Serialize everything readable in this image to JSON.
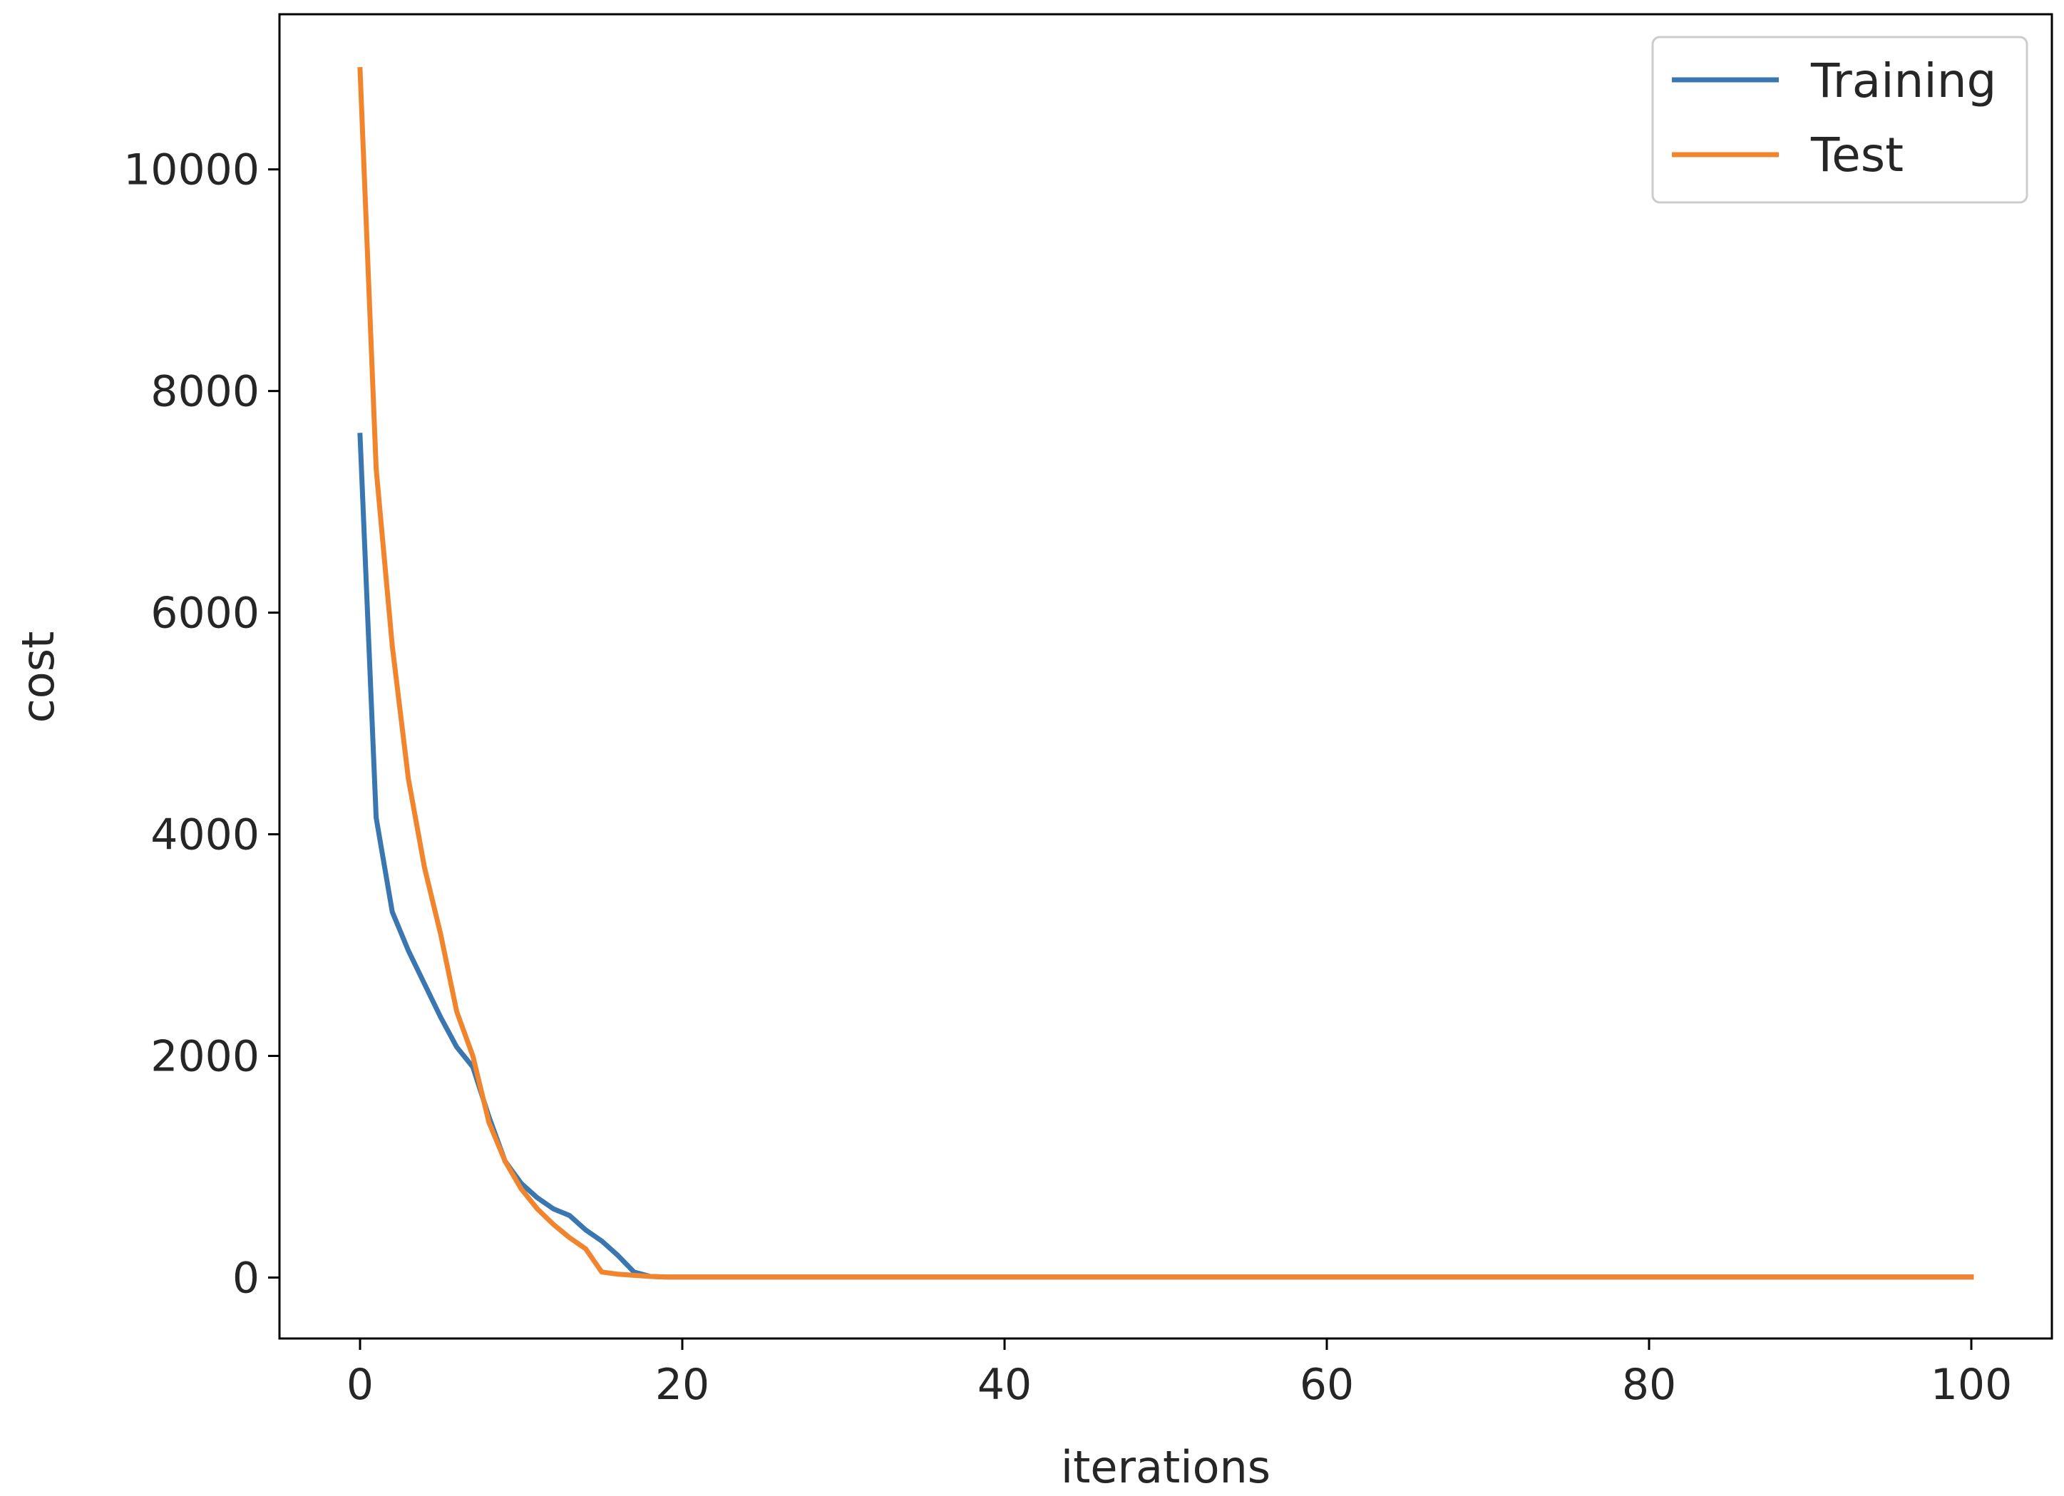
{
  "chart_data": {
    "type": "line",
    "title": "",
    "xlabel": "iterations",
    "ylabel": "cost",
    "xlim": [
      -5,
      105
    ],
    "ylim": [
      -550,
      11400
    ],
    "xticks": [
      0,
      20,
      40,
      60,
      80,
      100
    ],
    "yticks": [
      0,
      2000,
      4000,
      6000,
      8000,
      10000
    ],
    "grid": false,
    "legend_position": "top-right",
    "colors": {
      "Training": "#3a76b0",
      "Test": "#f0852d"
    },
    "series": [
      {
        "name": "Training",
        "x": [
          0,
          1,
          2,
          3,
          4,
          5,
          6,
          7,
          8,
          9,
          10,
          11,
          12,
          13,
          14,
          15,
          16,
          17,
          18,
          19,
          20,
          30,
          40,
          50,
          60,
          70,
          80,
          90,
          100
        ],
        "y": [
          7600,
          4150,
          3300,
          2950,
          2650,
          2350,
          2080,
          1900,
          1450,
          1050,
          850,
          720,
          620,
          560,
          430,
          330,
          200,
          50,
          10,
          5,
          5,
          5,
          5,
          5,
          5,
          5,
          5,
          5,
          5
        ]
      },
      {
        "name": "Test",
        "x": [
          0,
          1,
          2,
          3,
          4,
          5,
          6,
          7,
          8,
          9,
          10,
          11,
          12,
          13,
          14,
          15,
          16,
          17,
          18,
          19,
          20,
          30,
          40,
          50,
          60,
          70,
          80,
          90,
          100
        ],
        "y": [
          10900,
          7300,
          5700,
          4500,
          3700,
          3100,
          2400,
          2000,
          1400,
          1050,
          800,
          620,
          480,
          360,
          260,
          50,
          30,
          20,
          10,
          5,
          5,
          5,
          5,
          5,
          5,
          5,
          5,
          5,
          5
        ]
      }
    ]
  }
}
